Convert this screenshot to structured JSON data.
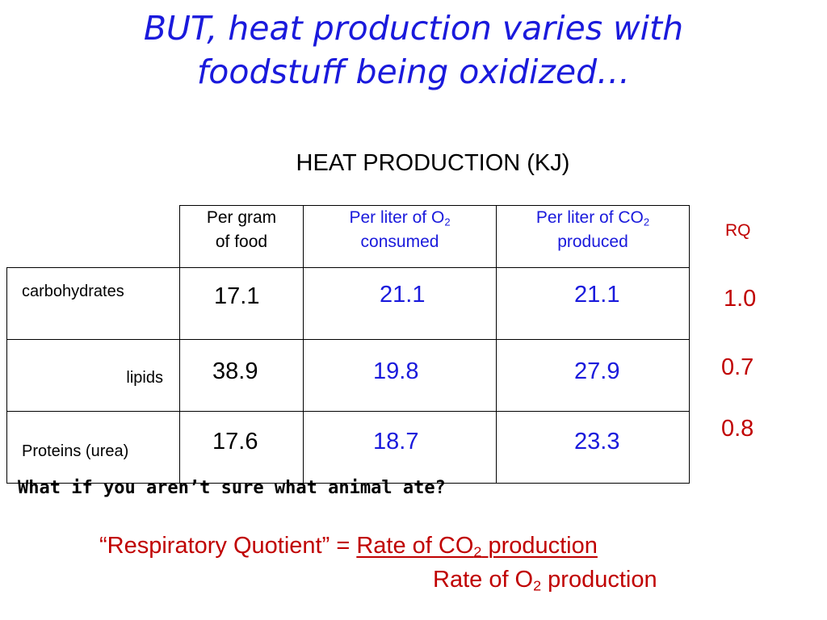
{
  "title": {
    "line1": "BUT, heat production varies with",
    "line2": "foodstuff being oxidized…"
  },
  "subtitle": "HEAT PRODUCTION (KJ)",
  "columns": [
    {
      "line1": "Per gram",
      "line2": "of food"
    },
    {
      "line1_pre": "Per liter of O",
      "line1_sub": "2",
      "line2": "consumed"
    },
    {
      "line1_pre": "Per liter of CO",
      "line1_sub": "2",
      "line2": "produced"
    }
  ],
  "rq_header": "RQ",
  "rows": [
    {
      "label": "carbohydrates",
      "per_gram": "17.1",
      "per_o2": "21.1",
      "per_co2": "21.1",
      "rq": "1.0"
    },
    {
      "label": "lipids",
      "per_gram": "38.9",
      "per_o2": "19.8",
      "per_co2": "27.9",
      "rq": "0.7"
    },
    {
      "label": "Proteins (urea)",
      "per_gram": "17.6",
      "per_o2": "18.7",
      "per_co2": "23.3",
      "rq": "0.8"
    }
  ],
  "question": "What if you aren’t sure what animal ate?",
  "formula": {
    "term": "“Respiratory Quotient” =",
    "num_pre": "Rate of CO",
    "num_sub": "2",
    "num_post": " production",
    "den_pre": "Rate of O",
    "den_sub": "2",
    "den_post": " production"
  },
  "colors": {
    "title_blue": "#1a1adc",
    "accent_red": "#c00000"
  }
}
